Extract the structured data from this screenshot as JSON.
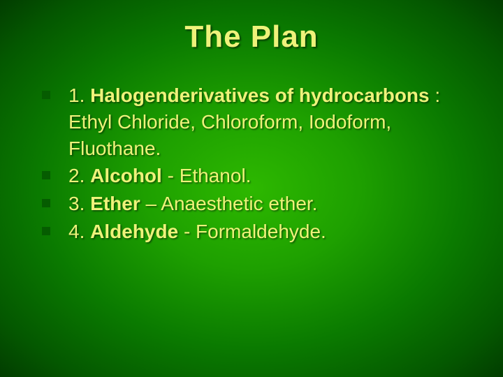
{
  "slide": {
    "title": "The Plan",
    "background": {
      "type": "radial-gradient",
      "center_color": "#2db800",
      "edge_color": "#023d00"
    },
    "title_style": {
      "color": "#eef27a",
      "fontsize": 44,
      "font_family": "Arial Black",
      "font_weight": 900,
      "shadow": "2px 2px 2px rgba(0,0,0,0.5)"
    },
    "body_style": {
      "text_color": "#eef27a",
      "fontsize": 28,
      "bullet_color": "#055c00",
      "bullet_size": 12,
      "shadow": "1.5px 1.5px 2px rgba(0,0,0,0.5)"
    },
    "items": [
      {
        "number": "1.",
        "bold": "Halogenderivatives of hydrocarbons",
        "rest": " : Ethyl Chloride, Chloroform, Iodoform, Fluothane."
      },
      {
        "number": "2.",
        "bold": "Alcohol",
        "rest": " - Ethanol."
      },
      {
        "number": "3.",
        "bold": "Ether",
        "rest": " – Anaesthetic ether."
      },
      {
        "number": "4.",
        "bold": "Aldehyde",
        "rest": " - Formaldehyde."
      }
    ]
  }
}
